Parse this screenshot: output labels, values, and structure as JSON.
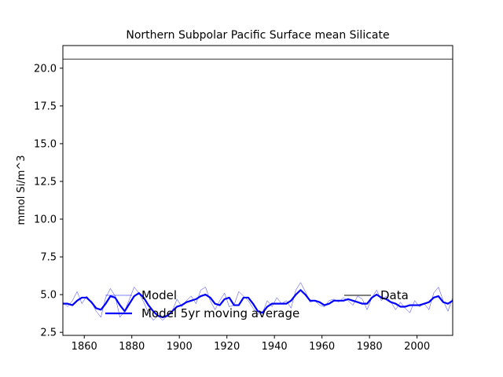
{
  "chart_data": {
    "type": "line",
    "title": "Northern Subpolar Pacific Surface mean Silicate",
    "xlabel": "",
    "ylabel": "mmol Si/m^3",
    "xlim": [
      1851,
      2015
    ],
    "ylim": [
      2.3,
      21.5
    ],
    "xticks": [
      1860,
      1880,
      1900,
      1920,
      1940,
      1960,
      1980,
      2000
    ],
    "yticks": [
      2.5,
      5.0,
      7.5,
      10.0,
      12.5,
      15.0,
      17.5,
      20.0
    ],
    "ytick_labels": [
      "2.5",
      "5.0",
      "7.5",
      "10.0",
      "12.5",
      "15.0",
      "17.5",
      "20.0"
    ],
    "grid": false,
    "legend_position": "lower-left",
    "series": [
      {
        "name": "Model",
        "style": "thin-line",
        "color": "#0000ff",
        "x": [
          1851,
          1853,
          1855,
          1857,
          1859,
          1861,
          1863,
          1865,
          1867,
          1869,
          1871,
          1873,
          1875,
          1877,
          1879,
          1881,
          1883,
          1885,
          1887,
          1889,
          1891,
          1893,
          1895,
          1897,
          1899,
          1901,
          1903,
          1905,
          1907,
          1909,
          1911,
          1913,
          1915,
          1917,
          1919,
          1921,
          1923,
          1925,
          1927,
          1929,
          1931,
          1933,
          1935,
          1937,
          1939,
          1941,
          1943,
          1945,
          1947,
          1949,
          1951,
          1953,
          1955,
          1957,
          1959,
          1961,
          1963,
          1965,
          1967,
          1969,
          1971,
          1973,
          1975,
          1977,
          1979,
          1981,
          1983,
          1985,
          1987,
          1989,
          1991,
          1993,
          1995,
          1997,
          1999,
          2001,
          2003,
          2005,
          2007,
          2009,
          2011,
          2013,
          2015
        ],
        "values": [
          4.5,
          4.2,
          4.6,
          5.2,
          4.4,
          4.9,
          4.5,
          3.9,
          3.5,
          4.8,
          5.4,
          4.9,
          3.5,
          3.9,
          4.7,
          5.5,
          5.1,
          4.5,
          3.8,
          3.3,
          3.6,
          3.3,
          3.6,
          3.9,
          4.7,
          4.2,
          4.6,
          4.9,
          4.4,
          5.3,
          5.5,
          4.6,
          4.0,
          4.6,
          5.1,
          4.2,
          4.3,
          5.2,
          4.9,
          4.6,
          4.1,
          3.7,
          3.8,
          4.6,
          4.2,
          4.8,
          4.4,
          4.6,
          4.1,
          5.3,
          5.8,
          5.2,
          4.5,
          4.6,
          4.3,
          4.2,
          4.6,
          4.7,
          4.5,
          4.8,
          4.6,
          4.3,
          4.9,
          4.7,
          4.0,
          4.8,
          5.3,
          4.6,
          4.9,
          4.5,
          4.0,
          4.5,
          4.1,
          3.8,
          4.6,
          4.2,
          4.4,
          4.0,
          5.1,
          5.5,
          4.6,
          3.9,
          4.8
        ]
      },
      {
        "name": "Model 5yr moving average",
        "style": "thick-line",
        "color": "#0000ff",
        "x": [
          1851,
          1853,
          1855,
          1857,
          1859,
          1861,
          1863,
          1865,
          1867,
          1869,
          1871,
          1873,
          1875,
          1877,
          1879,
          1881,
          1883,
          1885,
          1887,
          1889,
          1891,
          1893,
          1895,
          1897,
          1899,
          1901,
          1903,
          1905,
          1907,
          1909,
          1911,
          1913,
          1915,
          1917,
          1919,
          1921,
          1923,
          1925,
          1927,
          1929,
          1931,
          1933,
          1935,
          1937,
          1939,
          1941,
          1943,
          1945,
          1947,
          1949,
          1951,
          1953,
          1955,
          1957,
          1959,
          1961,
          1963,
          1965,
          1967,
          1969,
          1971,
          1973,
          1975,
          1977,
          1979,
          1981,
          1983,
          1985,
          1987,
          1989,
          1991,
          1993,
          1995,
          1997,
          1999,
          2001,
          2003,
          2005,
          2007,
          2009,
          2011,
          2013,
          2015
        ],
        "values": [
          4.4,
          4.4,
          4.3,
          4.6,
          4.8,
          4.8,
          4.5,
          4.1,
          4.0,
          4.4,
          4.9,
          4.8,
          4.3,
          3.9,
          4.4,
          4.9,
          5.1,
          4.8,
          4.3,
          3.9,
          3.6,
          3.5,
          3.6,
          3.9,
          4.2,
          4.3,
          4.5,
          4.6,
          4.7,
          4.9,
          5.0,
          4.8,
          4.4,
          4.3,
          4.7,
          4.8,
          4.3,
          4.3,
          4.8,
          4.8,
          4.4,
          3.9,
          3.8,
          4.2,
          4.4,
          4.4,
          4.4,
          4.4,
          4.6,
          5.0,
          5.3,
          5.0,
          4.6,
          4.6,
          4.5,
          4.3,
          4.4,
          4.6,
          4.6,
          4.6,
          4.7,
          4.6,
          4.5,
          4.4,
          4.4,
          4.8,
          5.0,
          4.8,
          4.7,
          4.5,
          4.4,
          4.2,
          4.2,
          4.3,
          4.3,
          4.3,
          4.4,
          4.5,
          4.8,
          4.9,
          4.5,
          4.4,
          4.6
        ]
      },
      {
        "name": "Data",
        "style": "thin-line",
        "color": "#000000",
        "x": [
          1851,
          2015
        ],
        "values": [
          20.6,
          20.6
        ]
      }
    ]
  }
}
